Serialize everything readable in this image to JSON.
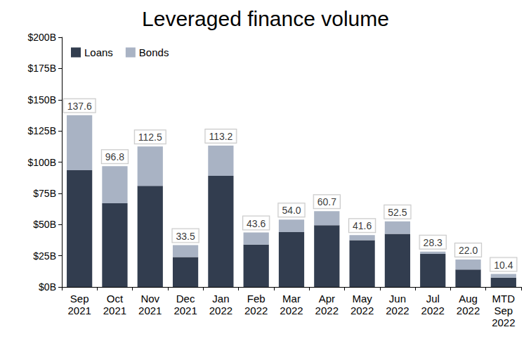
{
  "chart_data": {
    "type": "bar",
    "title": "Leveraged finance volume",
    "categories": [
      "Sep 2021",
      "Oct 2021",
      "Nov 2021",
      "Dec 2021",
      "Jan 2022",
      "Feb 2022",
      "Mar 2022",
      "Apr 2022",
      "May 2022",
      "Jun 2022",
      "Jul 2022",
      "Aug 2022",
      "MTD Sep 2022"
    ],
    "series": [
      {
        "name": "Loans",
        "color": "#323d4f",
        "values": [
          93.5,
          67,
          81,
          24,
          89,
          34,
          44,
          49.5,
          37.5,
          42.5,
          26.5,
          14,
          7.5
        ]
      },
      {
        "name": "Bonds",
        "color": "#a9b3c4",
        "values": [
          44.1,
          29.8,
          31.5,
          9.5,
          24.2,
          9.6,
          10.0,
          11.2,
          4.1,
          10.0,
          1.8,
          8.0,
          2.9
        ]
      }
    ],
    "totals": [
      137.6,
      96.8,
      112.5,
      33.5,
      113.2,
      43.6,
      54.0,
      60.7,
      41.6,
      52.5,
      28.3,
      22.0,
      10.4
    ],
    "total_labels": [
      "137.6",
      "96.8",
      "112.5",
      "33.5",
      "113.2",
      "43.6",
      "54.0",
      "60.7",
      "41.6",
      "52.5",
      "28.3",
      "22.0",
      "10.4"
    ],
    "ylim": [
      0,
      200
    ],
    "yticks": [
      {
        "value": 0,
        "label": "$0B"
      },
      {
        "value": 25,
        "label": "$25B"
      },
      {
        "value": 50,
        "label": "$50B"
      },
      {
        "value": 75,
        "label": "$75B"
      },
      {
        "value": 100,
        "label": "$100B"
      },
      {
        "value": 125,
        "label": "$125B"
      },
      {
        "value": 150,
        "label": "$150B"
      },
      {
        "value": 175,
        "label": "$175B"
      },
      {
        "value": 200,
        "label": "$200B"
      }
    ],
    "stacked": true,
    "grid": false,
    "legend": "top-left"
  }
}
